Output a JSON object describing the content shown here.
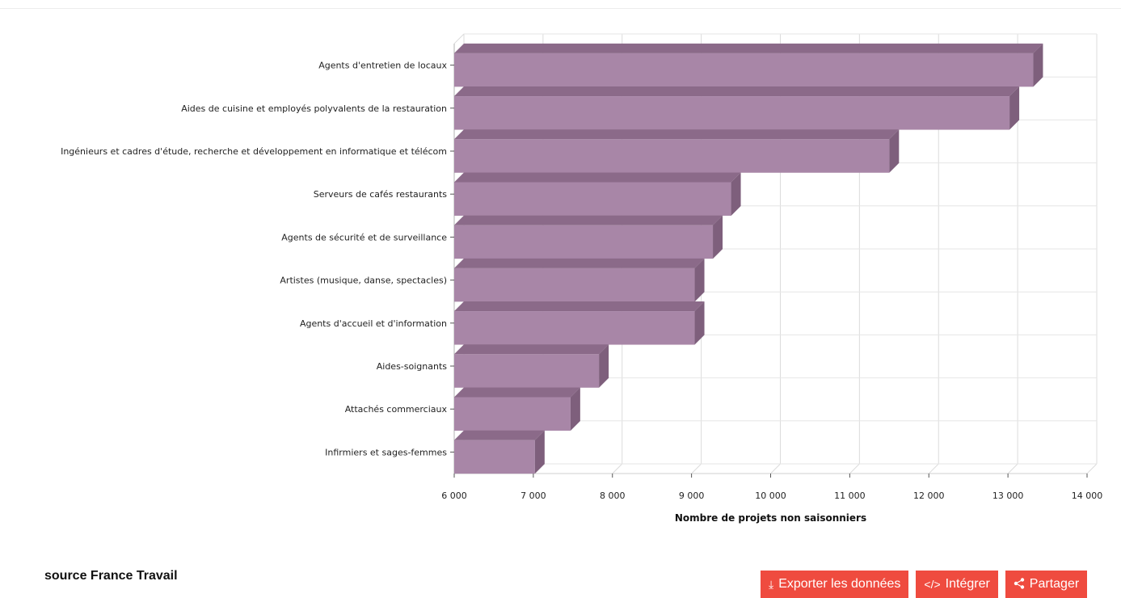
{
  "footer": {
    "source": "source France Travail",
    "buttons": {
      "export": {
        "label": "Exporter les données",
        "icon": "download-icon"
      },
      "embed": {
        "label": "Intégrer",
        "icon": "code-icon"
      },
      "share": {
        "label": "Partager",
        "icon": "share-icon"
      }
    },
    "button_color": "#ef4b3f"
  },
  "chart_data": {
    "type": "bar",
    "orientation": "horizontal",
    "style": "3d",
    "categories": [
      "Agents d'entretien de locaux",
      "Aides de cuisine et employés polyvalents de la restauration",
      "Ingénieurs et cadres d'étude, recherche et développement en informatique et télécom",
      "Serveurs de cafés restaurants",
      "Agents de sécurité et de surveillance",
      "Artistes (musique, danse, spectacles)",
      "Agents d'accueil et d'information",
      "Aides-soignants",
      "Attachés commerciaux",
      "Infirmiers et sages-femmes"
    ],
    "values": [
      13320,
      13020,
      11500,
      9500,
      9270,
      9040,
      9040,
      7830,
      7470,
      7020
    ],
    "xlabel": "Nombre de projets non saisonniers",
    "ylabel": "",
    "xlim": [
      6000,
      14000
    ],
    "ticks": [
      "6 000",
      "7 000",
      "8 000",
      "9 000",
      "10 000",
      "11 000",
      "12 000",
      "13 000",
      "14 000"
    ],
    "tick_values": [
      6000,
      7000,
      8000,
      9000,
      10000,
      11000,
      12000,
      13000,
      14000
    ],
    "grid": true,
    "bar_color": "#a886a7",
    "bar_top_color": "#8b6a89",
    "bar_side_color": "#7e5f7c"
  }
}
